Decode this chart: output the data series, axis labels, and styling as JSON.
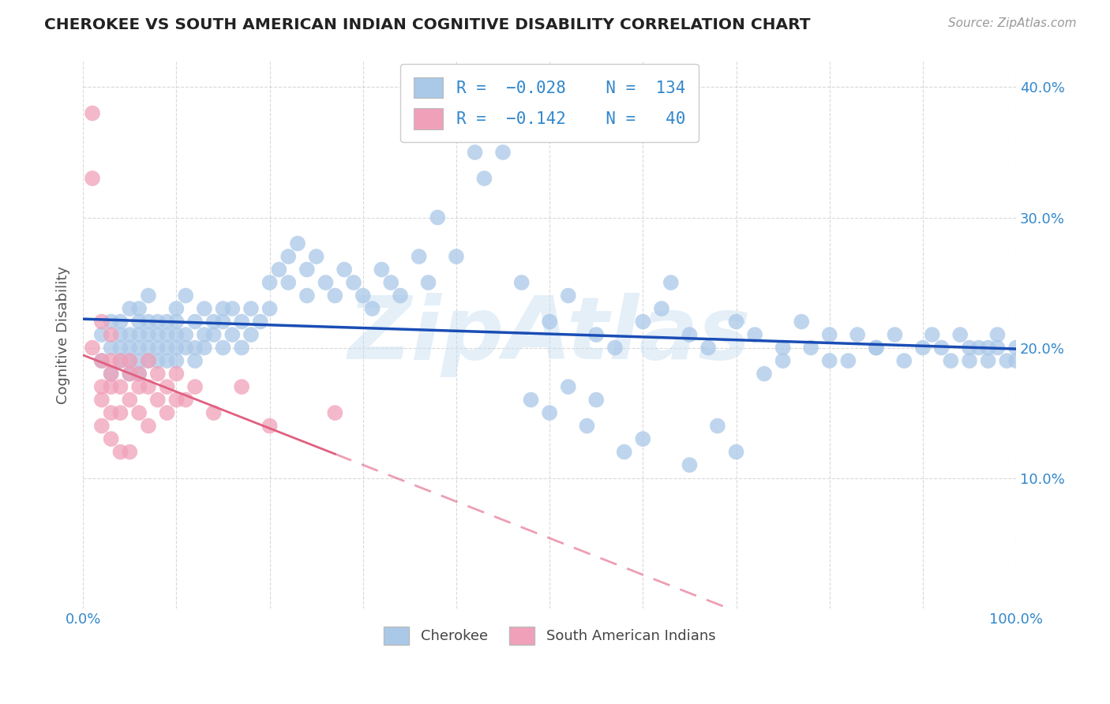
{
  "title": "CHEROKEE VS SOUTH AMERICAN INDIAN COGNITIVE DISABILITY CORRELATION CHART",
  "source": "Source: ZipAtlas.com",
  "ylabel": "Cognitive Disability",
  "watermark": "ZipAtlas",
  "cherokee_R": -0.028,
  "cherokee_N": 134,
  "sa_indian_R": -0.142,
  "sa_indian_N": 40,
  "cherokee_color": "#aac8e8",
  "sa_indian_color": "#f0a0b8",
  "cherokee_line_color": "#1a4db5",
  "sa_indian_line_color": "#e06080",
  "background_color": "#ffffff",
  "grid_color": "#d0d0d0",
  "axis_label_color": "#3388cc",
  "title_color": "#222222",
  "xlim": [
    0.0,
    1.0
  ],
  "ylim": [
    0.0,
    0.42
  ],
  "yticks": [
    0.1,
    0.2,
    0.3,
    0.4
  ],
  "ytick_labels": [
    "10.0%",
    "20.0%",
    "30.0%",
    "40.0%"
  ],
  "cherokee_x": [
    0.02,
    0.02,
    0.03,
    0.03,
    0.03,
    0.04,
    0.04,
    0.04,
    0.04,
    0.05,
    0.05,
    0.05,
    0.05,
    0.05,
    0.06,
    0.06,
    0.06,
    0.06,
    0.06,
    0.06,
    0.07,
    0.07,
    0.07,
    0.07,
    0.07,
    0.08,
    0.08,
    0.08,
    0.08,
    0.09,
    0.09,
    0.09,
    0.09,
    0.1,
    0.1,
    0.1,
    0.1,
    0.1,
    0.11,
    0.11,
    0.11,
    0.12,
    0.12,
    0.12,
    0.13,
    0.13,
    0.13,
    0.14,
    0.14,
    0.15,
    0.15,
    0.15,
    0.16,
    0.16,
    0.17,
    0.17,
    0.18,
    0.18,
    0.19,
    0.2,
    0.2,
    0.21,
    0.22,
    0.22,
    0.23,
    0.24,
    0.24,
    0.25,
    0.26,
    0.27,
    0.28,
    0.29,
    0.3,
    0.31,
    0.32,
    0.33,
    0.34,
    0.36,
    0.37,
    0.38,
    0.4,
    0.42,
    0.43,
    0.45,
    0.47,
    0.5,
    0.52,
    0.55,
    0.57,
    0.6,
    0.62,
    0.63,
    0.65,
    0.67,
    0.7,
    0.72,
    0.75,
    0.77,
    0.8,
    0.82,
    0.85,
    0.87,
    0.88,
    0.9,
    0.91,
    0.92,
    0.93,
    0.94,
    0.95,
    0.95,
    0.96,
    0.97,
    0.97,
    0.98,
    0.98,
    0.99,
    1.0,
    1.0,
    0.48,
    0.5,
    0.52,
    0.54,
    0.55,
    0.58,
    0.6,
    0.65,
    0.68,
    0.7,
    0.73,
    0.75,
    0.78,
    0.8,
    0.83,
    0.85
  ],
  "cherokee_y": [
    0.21,
    0.19,
    0.2,
    0.22,
    0.18,
    0.2,
    0.21,
    0.19,
    0.22,
    0.2,
    0.21,
    0.19,
    0.23,
    0.18,
    0.2,
    0.21,
    0.22,
    0.19,
    0.23,
    0.18,
    0.2,
    0.21,
    0.22,
    0.19,
    0.24,
    0.2,
    0.21,
    0.22,
    0.19,
    0.2,
    0.21,
    0.22,
    0.19,
    0.2,
    0.21,
    0.22,
    0.23,
    0.19,
    0.2,
    0.24,
    0.21,
    0.2,
    0.22,
    0.19,
    0.21,
    0.23,
    0.2,
    0.22,
    0.21,
    0.23,
    0.2,
    0.22,
    0.21,
    0.23,
    0.22,
    0.2,
    0.23,
    0.21,
    0.22,
    0.25,
    0.23,
    0.26,
    0.27,
    0.25,
    0.28,
    0.26,
    0.24,
    0.27,
    0.25,
    0.24,
    0.26,
    0.25,
    0.24,
    0.23,
    0.26,
    0.25,
    0.24,
    0.27,
    0.25,
    0.3,
    0.27,
    0.35,
    0.33,
    0.35,
    0.25,
    0.22,
    0.24,
    0.21,
    0.2,
    0.22,
    0.23,
    0.25,
    0.21,
    0.2,
    0.22,
    0.21,
    0.2,
    0.22,
    0.21,
    0.19,
    0.2,
    0.21,
    0.19,
    0.2,
    0.21,
    0.2,
    0.19,
    0.21,
    0.2,
    0.19,
    0.2,
    0.19,
    0.2,
    0.21,
    0.2,
    0.19,
    0.19,
    0.2,
    0.16,
    0.15,
    0.17,
    0.14,
    0.16,
    0.12,
    0.13,
    0.11,
    0.14,
    0.12,
    0.18,
    0.19,
    0.2,
    0.19,
    0.21,
    0.2
  ],
  "sa_x": [
    0.01,
    0.01,
    0.01,
    0.02,
    0.02,
    0.02,
    0.02,
    0.02,
    0.03,
    0.03,
    0.03,
    0.03,
    0.03,
    0.03,
    0.04,
    0.04,
    0.04,
    0.04,
    0.05,
    0.05,
    0.05,
    0.05,
    0.06,
    0.06,
    0.06,
    0.07,
    0.07,
    0.07,
    0.08,
    0.08,
    0.09,
    0.09,
    0.1,
    0.1,
    0.11,
    0.12,
    0.14,
    0.17,
    0.2,
    0.27
  ],
  "sa_y": [
    0.38,
    0.33,
    0.2,
    0.22,
    0.19,
    0.17,
    0.16,
    0.14,
    0.21,
    0.19,
    0.18,
    0.17,
    0.15,
    0.13,
    0.19,
    0.17,
    0.15,
    0.12,
    0.19,
    0.18,
    0.16,
    0.12,
    0.18,
    0.17,
    0.15,
    0.19,
    0.17,
    0.14,
    0.18,
    0.16,
    0.17,
    0.15,
    0.18,
    0.16,
    0.16,
    0.17,
    0.15,
    0.17,
    0.14,
    0.15
  ]
}
